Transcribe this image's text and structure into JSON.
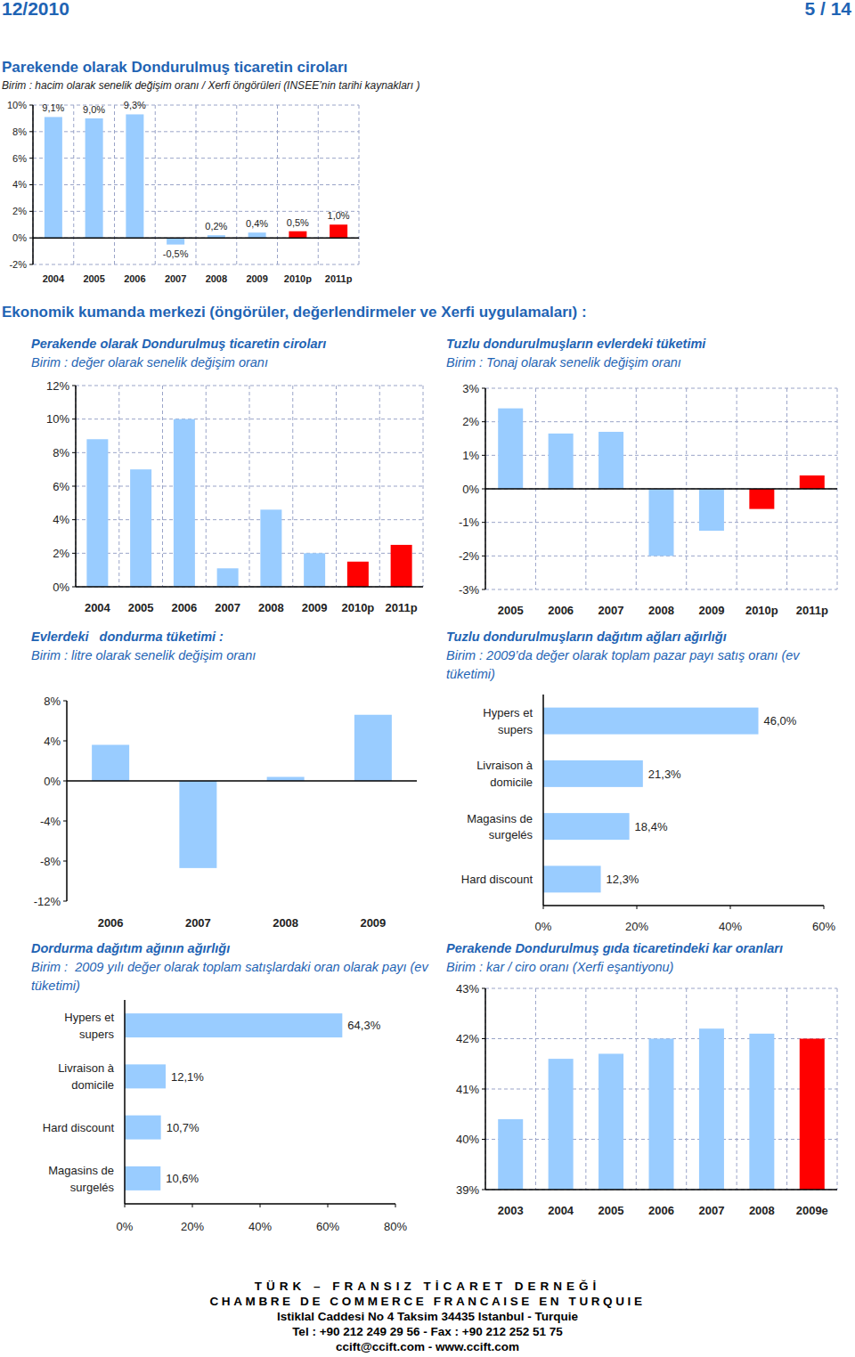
{
  "header": {
    "date": "12/2010",
    "page": "5 / 14"
  },
  "section_title": "Ekonomik kumanda merkezi (öngörüler, değerlendirmeler ve Xerfi uygulamaları) :",
  "chart_data": [
    {
      "type": "bar",
      "title": "Parekende olarak Dondurulmuş ticaretin ciroları",
      "subtitle": "Birim : hacim olarak senelik değişim oranı / Xerfi öngörüleri (INSEE’nin tarihi kaynakları )",
      "categories": [
        "2004",
        "2005",
        "2006",
        "2007",
        "2008",
        "2009",
        "2010p",
        "2011p"
      ],
      "values": [
        9.1,
        9.0,
        9.3,
        -0.5,
        0.2,
        0.4,
        0.5,
        1.0
      ],
      "value_labels": [
        "9,1%",
        "9,0%",
        "9,3%",
        "-0,5%",
        "0,2%",
        "0,4%",
        "0,5%",
        "1,0%"
      ],
      "colors": [
        "#99CCFF",
        "#99CCFF",
        "#99CCFF",
        "#99CCFF",
        "#99CCFF",
        "#99CCFF",
        "#FF0000",
        "#FF0000"
      ],
      "ylim": [
        -2,
        10
      ],
      "yticks": [
        {
          "value": -2,
          "label": "-2%"
        },
        {
          "value": 0,
          "label": "0%"
        },
        {
          "value": 2,
          "label": "2%"
        },
        {
          "value": 4,
          "label": "4%"
        },
        {
          "value": 6,
          "label": "6%"
        },
        {
          "value": 8,
          "label": "8%"
        },
        {
          "value": 10,
          "label": "10%"
        }
      ],
      "grid": true,
      "data_labels": true
    },
    {
      "type": "bar",
      "title": "Perakende olarak Dondurulmuş ticaretin ciroları",
      "subtitle": "Birim : değer olarak senelik değişim oranı",
      "categories": [
        "2004",
        "2005",
        "2006",
        "2007",
        "2008",
        "2009",
        "2010p",
        "2011p"
      ],
      "values": [
        8.8,
        7.0,
        10.0,
        1.1,
        4.6,
        2.0,
        1.5,
        2.5
      ],
      "colors": [
        "#99CCFF",
        "#99CCFF",
        "#99CCFF",
        "#99CCFF",
        "#99CCFF",
        "#99CCFF",
        "#FF0000",
        "#FF0000"
      ],
      "ylim": [
        0,
        12
      ],
      "yticks": [
        {
          "value": 0,
          "label": "0%"
        },
        {
          "value": 2,
          "label": "2%"
        },
        {
          "value": 4,
          "label": "4%"
        },
        {
          "value": 6,
          "label": "6%"
        },
        {
          "value": 8,
          "label": "8%"
        },
        {
          "value": 10,
          "label": "10%"
        },
        {
          "value": 12,
          "label": "12%"
        }
      ],
      "grid": true
    },
    {
      "type": "bar",
      "title": "Tuzlu dondurulmuşların evlerdeki tüketimi",
      "subtitle": "Birim : Tonaj olarak senelik değişim oranı",
      "categories": [
        "2005",
        "2006",
        "2007",
        "2008",
        "2009",
        "2010p",
        "2011p"
      ],
      "values": [
        2.4,
        1.65,
        1.7,
        -2.0,
        -1.25,
        -0.6,
        0.4
      ],
      "colors": [
        "#99CCFF",
        "#99CCFF",
        "#99CCFF",
        "#99CCFF",
        "#99CCFF",
        "#FF0000",
        "#FF0000"
      ],
      "ylim": [
        -3,
        3
      ],
      "yticks": [
        {
          "value": -3,
          "label": "-3%"
        },
        {
          "value": -2,
          "label": "-2%"
        },
        {
          "value": -1,
          "label": "-1%"
        },
        {
          "value": 0,
          "label": "0%"
        },
        {
          "value": 1,
          "label": "1%"
        },
        {
          "value": 2,
          "label": "2%"
        },
        {
          "value": 3,
          "label": "3%"
        }
      ],
      "grid": true
    },
    {
      "type": "bar",
      "title": "Evlerdeki   dondurma tüketimi :",
      "subtitle": "Birim : litre olarak senelik değişim oranı",
      "categories": [
        "2006",
        "2007",
        "2008",
        "2009"
      ],
      "values": [
        3.6,
        -8.7,
        0.4,
        6.6
      ],
      "color": "#99CCFF",
      "ylim": [
        -12,
        8
      ],
      "yticks": [
        {
          "value": -12,
          "label": "-12%"
        },
        {
          "value": -8,
          "label": "-8%"
        },
        {
          "value": -4,
          "label": "-4%"
        },
        {
          "value": 0,
          "label": "0%"
        },
        {
          "value": 4,
          "label": "4%"
        },
        {
          "value": 8,
          "label": "8%"
        }
      ],
      "grid": false
    },
    {
      "type": "bar",
      "orientation": "horizontal",
      "title": "Tuzlu dondurulmuşların dağıtım ağları ağırlığı",
      "subtitle": "Birim : 2009’da değer olarak toplam pazar payı satış oranı (ev tüketimi)",
      "categories": [
        "Hypers et supers",
        "Livraison à domicile",
        "Magasins de surgelés",
        "Hard discount"
      ],
      "values": [
        46.0,
        21.3,
        18.4,
        12.3
      ],
      "value_labels": [
        "46,0%",
        "21,3%",
        "18,4%",
        "12,3%"
      ],
      "color": "#99CCFF",
      "xlim": [
        0,
        60
      ],
      "xticks": [
        {
          "value": 0,
          "label": "0%"
        },
        {
          "value": 20,
          "label": "20%"
        },
        {
          "value": 40,
          "label": "40%"
        },
        {
          "value": 60,
          "label": "60%"
        }
      ],
      "grid": false,
      "data_labels": true
    },
    {
      "type": "bar",
      "orientation": "horizontal",
      "title": "Dordurma dağıtım ağının ağırlığı",
      "subtitle": "Birim :  2009 yılı değer olarak toplam satışlardaki oran olarak payı (ev tüketimi)",
      "categories": [
        "Hypers et supers",
        "Livraison à domicile",
        "Hard discount",
        "Magasins de surgelés"
      ],
      "values": [
        64.3,
        12.1,
        10.7,
        10.6
      ],
      "value_labels": [
        "64,3%",
        "12,1%",
        "10,7%",
        "10,6%"
      ],
      "color": "#99CCFF",
      "xlim": [
        0,
        80
      ],
      "xticks": [
        {
          "value": 0,
          "label": "0%"
        },
        {
          "value": 20,
          "label": "20%"
        },
        {
          "value": 40,
          "label": "40%"
        },
        {
          "value": 60,
          "label": "60%"
        },
        {
          "value": 80,
          "label": "80%"
        }
      ],
      "grid": false,
      "data_labels": true
    },
    {
      "type": "bar",
      "title": "Perakende Dondurulmuş gıda ticaretindeki kar oranları",
      "subtitle": "Birim : kar / ciro oranı (Xerfi eşantiyonu)",
      "categories": [
        "2003",
        "2004",
        "2005",
        "2006",
        "2007",
        "2008",
        "2009e"
      ],
      "values": [
        40.4,
        41.6,
        41.7,
        42.0,
        42.2,
        42.1,
        42.0
      ],
      "colors": [
        "#99CCFF",
        "#99CCFF",
        "#99CCFF",
        "#99CCFF",
        "#99CCFF",
        "#99CCFF",
        "#FF0000"
      ],
      "ylim": [
        39,
        43
      ],
      "yticks": [
        {
          "value": 39,
          "label": "39%"
        },
        {
          "value": 40,
          "label": "40%"
        },
        {
          "value": 41,
          "label": "41%"
        },
        {
          "value": 42,
          "label": "42%"
        },
        {
          "value": 43,
          "label": "43%"
        }
      ],
      "grid": true
    }
  ],
  "footer": [
    "TÜRK – FRANSIZ TİCARET DERNEĞİ",
    "CHAMBRE DE COMMERCE FRANCAISE EN TURQUIE",
    "Istiklal Caddesi No 4 Taksim 34435 Istanbul - Turquie",
    "Tel : +90 212 249 29 56 - Fax : +90 212 252 51 75",
    "ccift@ccift.com - www.ccift.com"
  ]
}
